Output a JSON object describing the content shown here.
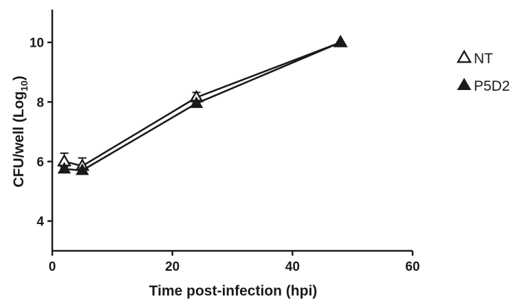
{
  "chart_data": {
    "type": "line",
    "title": "",
    "xlabel": "Time post-infection (hpi)",
    "ylabel_main": "CFU/well (Log",
    "ylabel_sub": "10",
    "ylabel_close": ")",
    "xlim": [
      0,
      60
    ],
    "ylim": [
      3,
      11.1
    ],
    "xticks": [
      0,
      20,
      40,
      60
    ],
    "yticks": [
      4,
      6,
      8,
      10
    ],
    "xtick_labels": [
      "0",
      "20",
      "40",
      "60"
    ],
    "ytick_labels": [
      "4",
      "6",
      "8",
      "10"
    ],
    "grid": false,
    "legend_position": "right",
    "x": [
      2,
      5,
      24,
      48
    ],
    "series": [
      {
        "name": "NT",
        "marker": "open-triangle",
        "color": "#1a1a1a",
        "values": [
          6.0,
          5.85,
          8.15,
          10.0
        ],
        "err_low": [
          5.75,
          5.65,
          7.95,
          10.0
        ],
        "err_high": [
          6.28,
          6.12,
          8.32,
          10.0
        ]
      },
      {
        "name": "P5D2",
        "marker": "filled-triangle",
        "color": "#1a1a1a",
        "values": [
          5.75,
          5.7,
          7.95,
          10.0
        ],
        "err_low": [
          5.68,
          5.62,
          7.85,
          10.0
        ],
        "err_high": [
          5.82,
          5.78,
          8.05,
          10.0
        ]
      }
    ]
  }
}
